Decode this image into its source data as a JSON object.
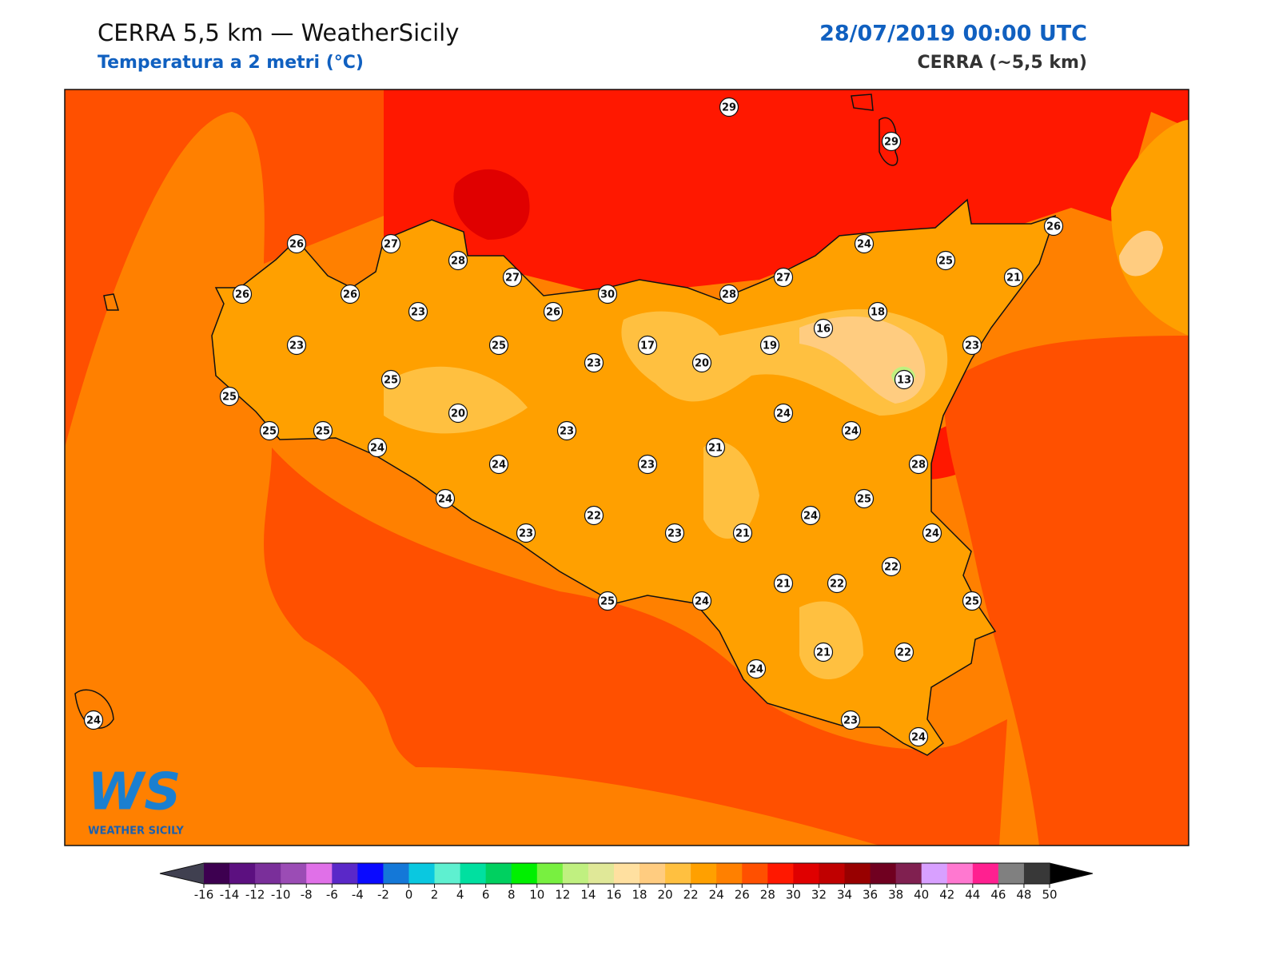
{
  "header": {
    "title": "CERRA 5,5 km — WeatherSicily",
    "subtitle": "Temperatura a 2 metri (°C)",
    "date": "28/07/2019 00:00 UTC",
    "model": "CERRA (~5,5 km)"
  },
  "stations": [
    29,
    29,
    26,
    27,
    28,
    27,
    30,
    26,
    24,
    25,
    26,
    21,
    26,
    26,
    23,
    28,
    27,
    18,
    16,
    23,
    25,
    17,
    19,
    23,
    23,
    20,
    25,
    13,
    25,
    20,
    24,
    25,
    25,
    23,
    24,
    24,
    21,
    24,
    23,
    28,
    24,
    25,
    22,
    24,
    23,
    23,
    21,
    24,
    22,
    21,
    22,
    25,
    24,
    25,
    24,
    21,
    22,
    23,
    24,
    24
  ],
  "colorbar": {
    "ticks": [
      -16,
      -14,
      -12,
      -10,
      -8,
      -6,
      -4,
      -2,
      0,
      2,
      4,
      6,
      8,
      10,
      12,
      14,
      16,
      18,
      20,
      22,
      24,
      26,
      28,
      30,
      32,
      34,
      36,
      38,
      40,
      42,
      44,
      46,
      48,
      50
    ],
    "colors": [
      "#3d0050",
      "#5c1080",
      "#7a2f9a",
      "#9b4cb5",
      "#e070e8",
      "#5a28c8",
      "#0a0aff",
      "#1478d8",
      "#0ac8e0",
      "#5ef0d0",
      "#00e0a0",
      "#00d060",
      "#00f000",
      "#78f040",
      "#c0f080",
      "#e0e898",
      "#ffe0a0",
      "#ffcc80",
      "#ffc040",
      "#ffa000",
      "#ff8000",
      "#ff5000",
      "#ff1800",
      "#e00000",
      "#c00000",
      "#980000",
      "#700020",
      "#802050",
      "#d8a0ff",
      "#ff78d0",
      "#ff2090",
      "#808080",
      "#383838"
    ],
    "under_color": "#404050",
    "over_color": "#000000"
  },
  "logo": {
    "letters": "WS",
    "name": "WEATHER SICILY"
  }
}
